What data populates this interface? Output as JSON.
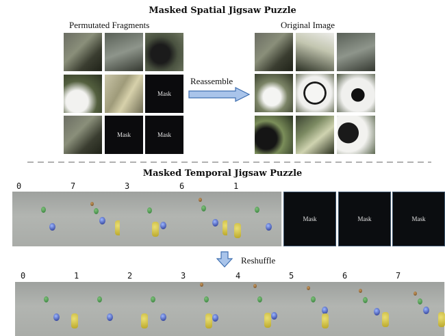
{
  "spatial": {
    "title": "Masked Spatial Jigsaw Puzzle",
    "left_label": "Permutated Fragments",
    "right_label": "Original Image",
    "arrow_label": "Reassemble",
    "mask_label": "Mask"
  },
  "temporal": {
    "title": "Masked Temporal Jigsaw Puzzle",
    "top_numbers": [
      "0",
      "7",
      "3",
      "6",
      "1"
    ],
    "mask_label": "Mask",
    "arrow_label": "Reshuffle",
    "bottom_numbers": [
      "0",
      "1",
      "2",
      "3",
      "4",
      "5",
      "6",
      "7"
    ]
  },
  "colors": {
    "arrow_fill": "#a9c4ea",
    "arrow_stroke": "#3f6fb0",
    "mask_bg": "#0b0b0d",
    "divider": "#b0b0b0"
  }
}
